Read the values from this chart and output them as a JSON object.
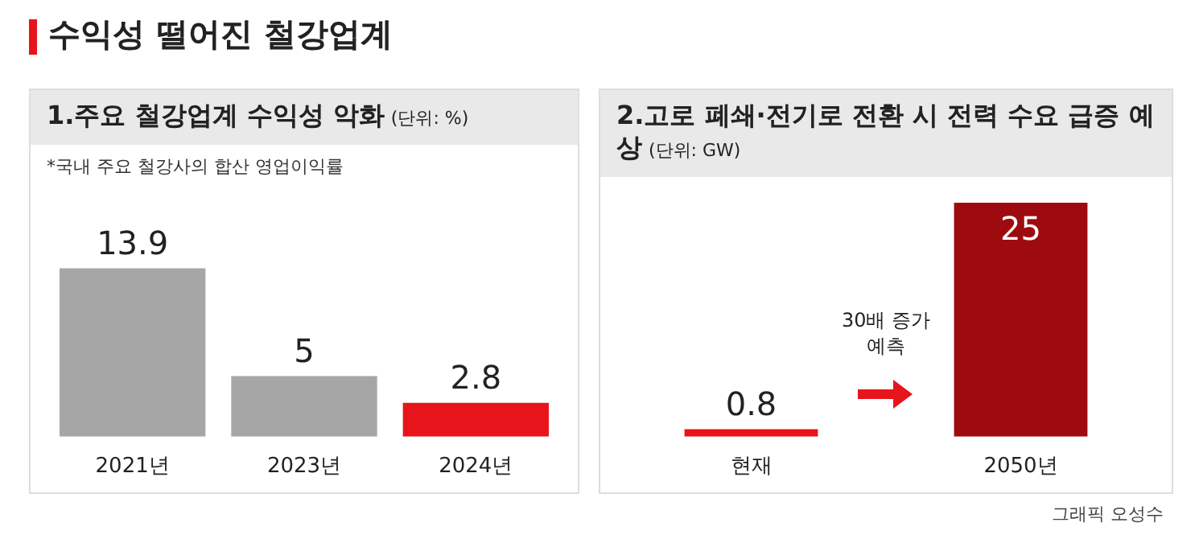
{
  "chart_data": [
    {
      "type": "other",
      "title": "수익성 떨어진 철강업계",
      "annotations": [
        "그래픽 오성수"
      ]
    },
    {
      "type": "bar",
      "title": "1.주요 철강업계 수익성 악화",
      "subtitle": "(단위: %)",
      "annotations": [
        "*국내 주요 철강사의 합산 영업이익률"
      ],
      "categories": [
        "2021년",
        "2023년",
        "2024년"
      ],
      "values": [
        13.9,
        5,
        2.8
      ],
      "colors": [
        "#a6a6a6",
        "#a6a6a6",
        "#e8141b"
      ],
      "data_labels": true
    },
    {
      "type": "bar",
      "title": "2.고로 폐쇄·전기로 전환 시 전력 수요 급증 예상",
      "subtitle": "(단위: GW)",
      "annotations": [
        "30배 증가 예측"
      ],
      "categories": [
        "현재",
        "2050년"
      ],
      "values": [
        0.8,
        25
      ],
      "colors": [
        "#e8141b",
        "#9e0b0f"
      ],
      "data_labels": true
    }
  ]
}
